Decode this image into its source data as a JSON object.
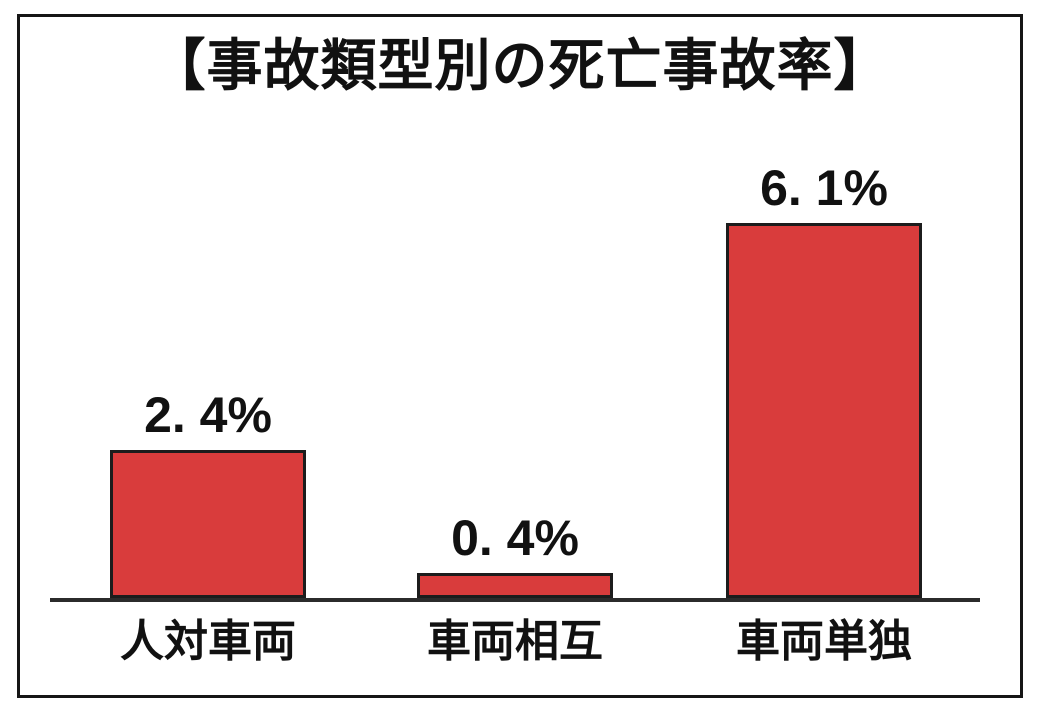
{
  "page": {
    "background_color": "#ffffff",
    "frame_border_color": "#161616"
  },
  "chart_data": {
    "type": "bar",
    "title": "【事故類型別の死亡事故率】",
    "categories": [
      "人対車両",
      "車両相互",
      "車両単独"
    ],
    "values": [
      2.4,
      0.4,
      6.1
    ],
    "value_labels": [
      "2. 4%",
      "0. 4%",
      "6. 1%"
    ],
    "unit": "%",
    "ylim": [
      0,
      6.5
    ],
    "xlabel": "",
    "ylabel": "",
    "grid": false,
    "legend": false,
    "bar_color": "#d93c3c",
    "bar_border_color": "#1c1c1c",
    "axis_color": "#2b2b2b",
    "text_color": "#111111"
  }
}
